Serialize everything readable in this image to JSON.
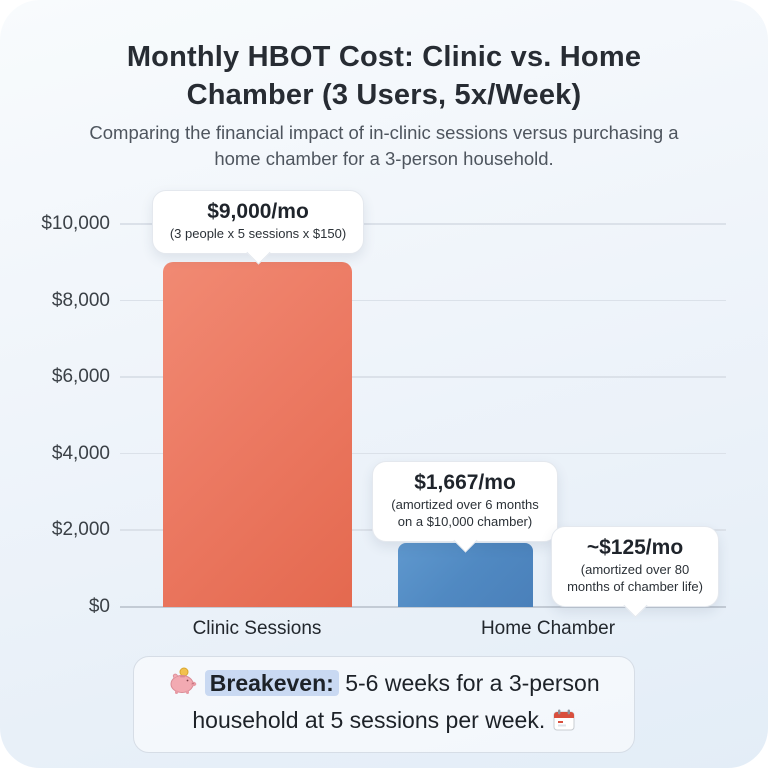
{
  "header": {
    "title": "Monthly HBOT Cost: Clinic vs. Home Chamber (3 Users, 5x/Week)",
    "subtitle": "Comparing the financial impact of in-clinic sessions versus purchasing a home chamber for a 3-person household."
  },
  "chart_data": {
    "type": "bar",
    "title": "Monthly HBOT Cost: Clinic vs. Home Chamber (3 Users, 5x/Week)",
    "categories": [
      "Clinic Sessions",
      "Home Chamber"
    ],
    "series": [
      {
        "name": "Clinic Sessions",
        "value": 9000,
        "color": "#ec7a63"
      },
      {
        "name": "Home Chamber (6-month amortization)",
        "value": 1667,
        "color": "#5089c2"
      },
      {
        "name": "Home Chamber (80-month amortization)",
        "value": 125,
        "color": "#a3cce9"
      }
    ],
    "ylim": [
      0,
      10000
    ],
    "ytick_values": [
      0,
      2000,
      4000,
      6000,
      8000,
      10000
    ],
    "ytick_labels": [
      "$0",
      "$2,000",
      "$4,000",
      "$6,000",
      "$8,000",
      "$10,000"
    ],
    "grid": true,
    "legend": "none",
    "annotations": [
      {
        "target": "Clinic Sessions",
        "value_label": "$9,000/mo",
        "detail": "(3 people x 5 sessions x $150)"
      },
      {
        "target": "Home Chamber (6-month amortization)",
        "value_label": "$1,667/mo",
        "detail": "(amortized over 6 months on a $10,000 chamber)"
      },
      {
        "target": "Home Chamber (80-month amortization)",
        "value_label": "~$125/mo",
        "detail": "(amortized over 80 months of chamber life)"
      }
    ]
  },
  "callouts": [
    {
      "value": "$9,000/mo",
      "detail": "(3 people x 5 sessions x $150)"
    },
    {
      "value": "$1,667/mo",
      "detail": "(amortized over 6 months on a $10,000 chamber)"
    },
    {
      "value": "~$125/mo",
      "detail": "(amortized over 80 months of chamber life)"
    }
  ],
  "note": {
    "prefix_icon": "piggy-bank",
    "label": "Breakeven:",
    "text": " 5-6 weeks for a 3-person household at 5 sessions per week. ",
    "suffix_icon": "calendar"
  },
  "colors": {
    "clinic_bar": "#ec7a63",
    "home_bar": "#5089c2",
    "home_bar_light": "#a3cce9",
    "highlight": "#c9d9f2",
    "background_top": "#f8fbfd",
    "background_bottom": "#e3edf7"
  }
}
